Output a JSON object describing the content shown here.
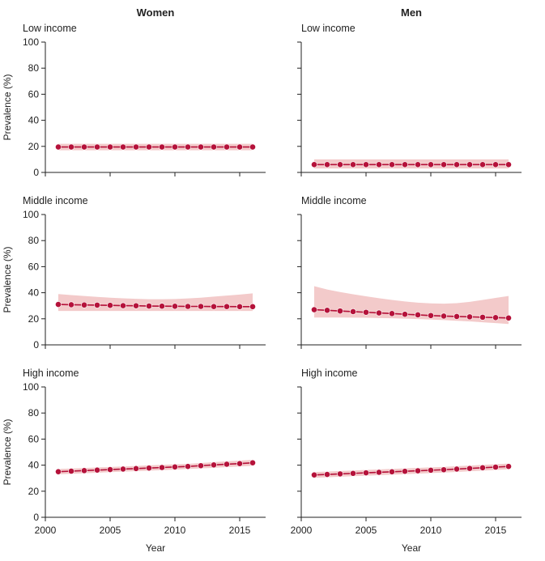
{
  "figure": {
    "column_titles": [
      "Women",
      "Men"
    ]
  },
  "colors": {
    "line": "#b5123a",
    "point": "#b5123a",
    "band": "#f1c1c1"
  },
  "chart_data": [
    {
      "type": "line",
      "panel_title": "Low income",
      "column": "Women",
      "ylabel": "Prevalence (%)",
      "xlabel": "",
      "ylim": [
        0,
        100
      ],
      "yticks": [
        0,
        20,
        40,
        60,
        80,
        100
      ],
      "xlim": [
        2000,
        2017
      ],
      "xticks": [],
      "x": [
        2001,
        2002,
        2003,
        2004,
        2005,
        2006,
        2007,
        2008,
        2009,
        2010,
        2011,
        2012,
        2013,
        2014,
        2015,
        2016
      ],
      "y": [
        19.5,
        19.5,
        19.5,
        19.5,
        19.5,
        19.5,
        19.5,
        19.5,
        19.5,
        19.5,
        19.5,
        19.5,
        19.5,
        19.5,
        19.5,
        19.5
      ],
      "ci_lower": [
        17,
        17,
        17,
        17,
        17,
        17,
        17,
        17,
        17,
        17,
        17,
        17,
        17,
        17,
        17,
        17
      ],
      "ci_upper": [
        22,
        22,
        22,
        22,
        22,
        22,
        22,
        22,
        22,
        22,
        22,
        22,
        22,
        22,
        22,
        22
      ]
    },
    {
      "type": "line",
      "panel_title": "Low income",
      "column": "Men",
      "ylabel": "",
      "xlabel": "",
      "ylim": [
        0,
        100
      ],
      "yticks": [],
      "xlim": [
        2000,
        2017
      ],
      "xticks": [],
      "x": [
        2001,
        2002,
        2003,
        2004,
        2005,
        2006,
        2007,
        2008,
        2009,
        2010,
        2011,
        2012,
        2013,
        2014,
        2015,
        2016
      ],
      "y": [
        6,
        6,
        6,
        6,
        6,
        6,
        6,
        6,
        6,
        6,
        6,
        6,
        6,
        6,
        6,
        6
      ],
      "ci_lower": [
        3,
        3,
        3,
        3,
        3,
        3,
        3,
        3,
        3,
        3,
        3,
        3,
        3,
        3,
        3,
        3
      ],
      "ci_upper": [
        10,
        10,
        10,
        10,
        10,
        10,
        10,
        10,
        10,
        10,
        10,
        10,
        10,
        10,
        10,
        10
      ]
    },
    {
      "type": "line",
      "panel_title": "Middle income",
      "column": "Women",
      "ylabel": "Prevalence (%)",
      "xlabel": "",
      "ylim": [
        0,
        100
      ],
      "yticks": [
        0,
        20,
        40,
        60,
        80,
        100
      ],
      "xlim": [
        2000,
        2017
      ],
      "xticks": [],
      "x": [
        2001,
        2002,
        2003,
        2004,
        2005,
        2006,
        2007,
        2008,
        2009,
        2010,
        2011,
        2012,
        2013,
        2014,
        2015,
        2016
      ],
      "y": [
        31,
        30.8,
        30.6,
        30.5,
        30.3,
        30.1,
        30,
        29.8,
        29.7,
        29.6,
        29.5,
        29.5,
        29.4,
        29.4,
        29.3,
        29.3
      ],
      "ci_lower": [
        26,
        26,
        26,
        26,
        26,
        26,
        26,
        26,
        26,
        26,
        26,
        26,
        26,
        26,
        26,
        26
      ],
      "ci_upper": [
        39,
        38.2,
        37.5,
        36.8,
        36.2,
        35.7,
        35.3,
        35,
        35,
        35.2,
        35.6,
        36.2,
        37,
        37.8,
        38.6,
        39.5
      ]
    },
    {
      "type": "line",
      "panel_title": "Middle income",
      "column": "Men",
      "ylabel": "",
      "xlabel": "",
      "ylim": [
        0,
        100
      ],
      "yticks": [],
      "xlim": [
        2000,
        2017
      ],
      "xticks": [],
      "x": [
        2001,
        2002,
        2003,
        2004,
        2005,
        2006,
        2007,
        2008,
        2009,
        2010,
        2011,
        2012,
        2013,
        2014,
        2015,
        2016
      ],
      "y": [
        27,
        26.5,
        26,
        25.5,
        25,
        24.5,
        24,
        23.5,
        23,
        22.5,
        22.1,
        21.8,
        21.5,
        21.2,
        20.9,
        20.6
      ],
      "ci_lower": [
        21,
        21,
        21,
        20.9,
        20.8,
        20.6,
        20.4,
        20.1,
        19.8,
        19.4,
        19,
        18.5,
        18,
        17.3,
        16.7,
        16
      ],
      "ci_upper": [
        45,
        42.5,
        40.5,
        38.8,
        37.3,
        35.8,
        34.5,
        33.3,
        32.4,
        31.8,
        31.6,
        32,
        33,
        34.5,
        36,
        37.5
      ]
    },
    {
      "type": "line",
      "panel_title": "High income",
      "column": "Women",
      "ylabel": "Prevalence (%)",
      "xlabel": "Year",
      "ylim": [
        0,
        100
      ],
      "yticks": [
        0,
        20,
        40,
        60,
        80,
        100
      ],
      "xlim": [
        2000,
        2017
      ],
      "xticks": [
        2000,
        2005,
        2010,
        2015
      ],
      "x": [
        2001,
        2002,
        2003,
        2004,
        2005,
        2006,
        2007,
        2008,
        2009,
        2010,
        2011,
        2012,
        2013,
        2014,
        2015,
        2016
      ],
      "y": [
        35,
        35.4,
        35.8,
        36.2,
        36.6,
        37,
        37.4,
        37.8,
        38.2,
        38.6,
        39,
        39.6,
        40.2,
        40.7,
        41.2,
        41.8
      ],
      "ci_lower": [
        33,
        33.4,
        33.8,
        34.2,
        34.6,
        35,
        35.4,
        35.8,
        36.2,
        36.6,
        37,
        37.5,
        38,
        38.5,
        39,
        39.5
      ],
      "ci_upper": [
        37,
        37.4,
        37.8,
        38.2,
        38.6,
        39,
        39.4,
        39.8,
        40.2,
        40.6,
        41,
        41.6,
        42.3,
        42.9,
        43.5,
        44.1
      ]
    },
    {
      "type": "line",
      "panel_title": "High income",
      "column": "Men",
      "ylabel": "",
      "xlabel": "Year",
      "ylim": [
        0,
        100
      ],
      "yticks": [],
      "xlim": [
        2000,
        2017
      ],
      "xticks": [
        2000,
        2005,
        2010,
        2015
      ],
      "x": [
        2001,
        2002,
        2003,
        2004,
        2005,
        2006,
        2007,
        2008,
        2009,
        2010,
        2011,
        2012,
        2013,
        2014,
        2015,
        2016
      ],
      "y": [
        32.5,
        32.9,
        33.3,
        33.7,
        34.1,
        34.5,
        34.9,
        35.3,
        35.7,
        36.1,
        36.5,
        37,
        37.5,
        38,
        38.5,
        39
      ],
      "ci_lower": [
        30.3,
        30.7,
        31.1,
        31.5,
        31.9,
        32.3,
        32.7,
        33.1,
        33.5,
        33.9,
        34.3,
        34.8,
        35.3,
        35.8,
        36.3,
        36.8
      ],
      "ci_upper": [
        34.7,
        35.1,
        35.5,
        35.9,
        36.3,
        36.7,
        37.1,
        37.5,
        37.9,
        38.3,
        38.7,
        39.2,
        39.7,
        40.2,
        40.7,
        41.2
      ]
    }
  ]
}
